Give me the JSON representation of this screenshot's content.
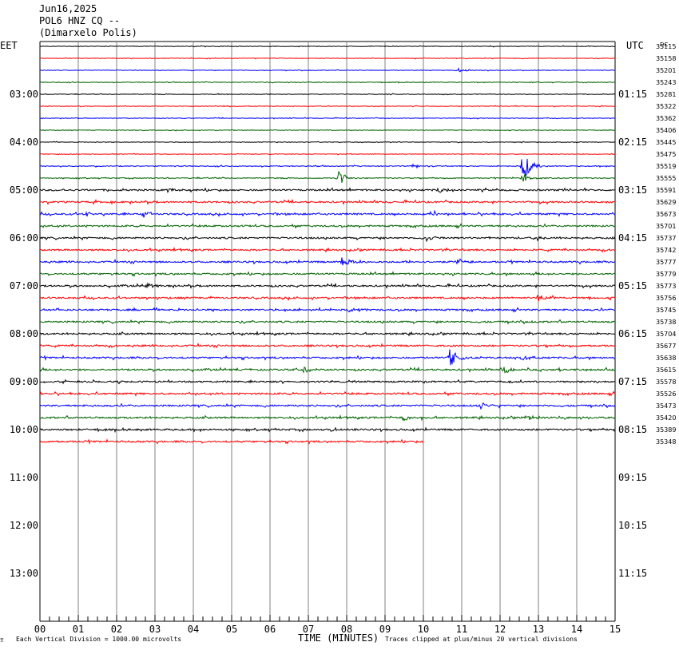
{
  "header": {
    "date": "Jun16,2025",
    "station": "POL6 HNZ CQ --",
    "location": "(Dimarxelo Polis)"
  },
  "footer": {
    "scale_note": "Each Vertical Division = 1000.00 microvolts",
    "clip_note": "Traces clipped at plus/minus 20 vertical divisions",
    "corner_mark": "⌆"
  },
  "colors": {
    "trace_cycle": [
      "#000000",
      "#ff0000",
      "#0000ff",
      "#006400"
    ],
    "grid": "#808080"
  },
  "chart_data": {
    "type": "line",
    "subtype": "helicorder",
    "xlabel": "TIME (MINUTES)",
    "xlim": [
      0,
      15
    ],
    "x_ticks": [
      "00",
      "01",
      "02",
      "03",
      "04",
      "05",
      "06",
      "07",
      "08",
      "09",
      "10",
      "11",
      "12",
      "13",
      "14",
      "15"
    ],
    "left_axis_title": "EET",
    "right_axis_title": "UTC",
    "dc_label": "DC",
    "left_time_labels": [
      "03:00",
      "04:00",
      "05:00",
      "06:00",
      "07:00",
      "08:00",
      "09:00",
      "10:00",
      "11:00",
      "12:00",
      "13:00"
    ],
    "right_time_labels": [
      "01:15",
      "02:15",
      "03:15",
      "04:15",
      "05:15",
      "06:15",
      "07:15",
      "08:15",
      "09:15",
      "10:15",
      "11:15"
    ],
    "rows_per_hour": 4,
    "total_rows": 44,
    "dc_offsets": [
      35115,
      35158,
      35201,
      35243,
      35281,
      35322,
      35362,
      35406,
      35445,
      35475,
      35519,
      35555,
      35591,
      35629,
      35673,
      35701,
      35737,
      35742,
      35777,
      35779,
      35773,
      35756,
      35745,
      35738,
      35704,
      35677,
      35638,
      35615,
      35578,
      35526,
      35473,
      35420,
      35389,
      35348
    ],
    "last_trace_end_minute": 10.0,
    "events": [
      {
        "row": 2,
        "minute": 10.9,
        "amp": 3
      },
      {
        "row": 10,
        "minute": 12.6,
        "amp": 20
      },
      {
        "row": 10,
        "minute": 9.7,
        "amp": 3
      },
      {
        "row": 11,
        "minute": 7.8,
        "amp": 10
      },
      {
        "row": 11,
        "minute": 12.6,
        "amp": 6
      },
      {
        "row": 12,
        "minute": 3.3,
        "amp": 4
      },
      {
        "row": 12,
        "minute": 10.4,
        "amp": 3
      },
      {
        "row": 14,
        "minute": 2.7,
        "amp": 5
      },
      {
        "row": 14,
        "minute": 10.2,
        "amp": 6
      },
      {
        "row": 14,
        "minute": 1.2,
        "amp": 3
      },
      {
        "row": 16,
        "minute": 10.1,
        "amp": 5
      },
      {
        "row": 16,
        "minute": 12.9,
        "amp": 4
      },
      {
        "row": 18,
        "minute": 7.9,
        "amp": 8
      },
      {
        "row": 18,
        "minute": 10.9,
        "amp": 4
      },
      {
        "row": 20,
        "minute": 2.8,
        "amp": 4
      },
      {
        "row": 21,
        "minute": 13.0,
        "amp": 6
      },
      {
        "row": 22,
        "minute": 8.1,
        "amp": 4
      },
      {
        "row": 26,
        "minute": 10.7,
        "amp": 12
      },
      {
        "row": 26,
        "minute": 12.6,
        "amp": 5
      },
      {
        "row": 27,
        "minute": 6.9,
        "amp": 4
      },
      {
        "row": 27,
        "minute": 12.1,
        "amp": 5
      },
      {
        "row": 30,
        "minute": 11.5,
        "amp": 4
      },
      {
        "row": 31,
        "minute": 9.5,
        "amp": 6
      },
      {
        "row": 31,
        "minute": 12.7,
        "amp": 5
      },
      {
        "row": 32,
        "minute": 7.6,
        "amp": 3
      }
    ]
  }
}
